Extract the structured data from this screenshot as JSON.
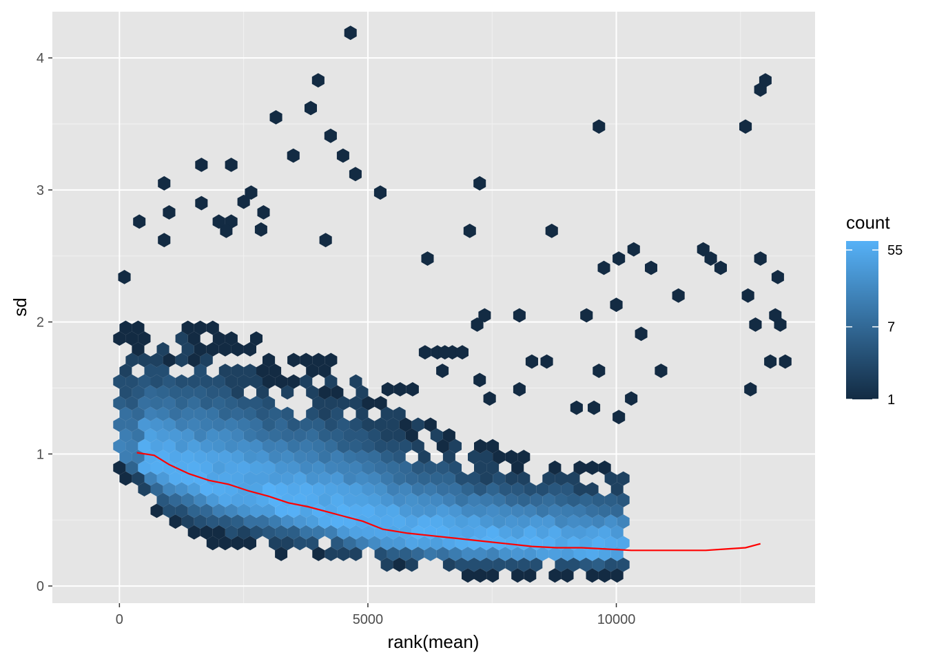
{
  "chart_data": {
    "type": "heatmap",
    "subtype": "hexbin",
    "title": "",
    "xlabel": "rank(mean)",
    "ylabel": "sd",
    "xlim": [
      -1350,
      14000
    ],
    "ylim": [
      -0.13,
      4.35
    ],
    "x_ticks": [
      0,
      5000,
      10000
    ],
    "x_tick_labels": [
      "0",
      "5000",
      "10000"
    ],
    "y_ticks": [
      0,
      1,
      2,
      3,
      4
    ],
    "y_tick_labels": [
      "0",
      "1",
      "2",
      "3",
      "4"
    ],
    "grid": true,
    "panel_background": "#e5e5e5",
    "legend": {
      "title": "count",
      "placement": "right",
      "breaks": [
        55,
        7,
        1
      ],
      "break_labels": [
        "55",
        "7",
        "1"
      ],
      "scale": "log",
      "range": [
        1,
        70
      ],
      "low_color": "#132b43",
      "high_color": "#56b1f7"
    },
    "hex_grid": {
      "x_start": 0,
      "x_step": 250.4,
      "y_start": 0.8,
      "y_step": 0.0625,
      "n_cols": 41,
      "n_rows": 62,
      "offset_odd_rows": true
    },
    "density_profile": {
      "x": [
        0,
        1000,
        2000,
        3000,
        4000,
        5000,
        6000,
        7000,
        8000,
        9000,
        10000,
        11000,
        12000,
        13200
      ],
      "center": [
        1.0,
        0.86,
        0.74,
        0.63,
        0.54,
        0.42,
        0.37,
        0.33,
        0.3,
        0.28,
        0.27,
        0.27,
        0.28,
        0.32
      ],
      "top": [
        2.0,
        2.0,
        1.95,
        1.85,
        1.75,
        1.6,
        1.3,
        1.15,
        1.05,
        1.0,
        0.95,
        0.95,
        1.05,
        1.15
      ],
      "bottom": [
        0.85,
        0.45,
        0.3,
        0.25,
        0.2,
        0.15,
        0.1,
        0.08,
        0.08,
        0.08,
        0.08,
        0.08,
        0.08,
        0.08
      ]
    },
    "sparse_points": [
      [
        100,
        2.34
      ],
      [
        400,
        2.76
      ],
      [
        900,
        3.05
      ],
      [
        1000,
        2.83
      ],
      [
        900,
        2.62
      ],
      [
        1650,
        3.19
      ],
      [
        2250,
        3.19
      ],
      [
        1650,
        2.9
      ],
      [
        2500,
        2.91
      ],
      [
        2650,
        2.98
      ],
      [
        2900,
        2.83
      ],
      [
        2850,
        2.7
      ],
      [
        2000,
        2.76
      ],
      [
        2250,
        2.76
      ],
      [
        2150,
        2.69
      ],
      [
        3150,
        3.55
      ],
      [
        3500,
        3.26
      ],
      [
        3850,
        3.62
      ],
      [
        4000,
        3.83
      ],
      [
        4150,
        2.62
      ],
      [
        4250,
        3.41
      ],
      [
        4500,
        3.26
      ],
      [
        4650,
        4.19
      ],
      [
        4750,
        3.12
      ],
      [
        5250,
        2.98
      ],
      [
        6200,
        2.48
      ],
      [
        7050,
        2.69
      ],
      [
        7250,
        3.05
      ],
      [
        8700,
        2.69
      ],
      [
        9650,
        3.48
      ],
      [
        9750,
        2.41
      ],
      [
        10050,
        2.48
      ],
      [
        10350,
        2.55
      ],
      [
        10700,
        2.41
      ],
      [
        12600,
        3.48
      ],
      [
        12900,
        3.76
      ],
      [
        13000,
        3.83
      ],
      [
        12900,
        2.48
      ],
      [
        13250,
        2.34
      ],
      [
        9400,
        2.05
      ],
      [
        10000,
        2.13
      ],
      [
        10500,
        1.91
      ],
      [
        10900,
        1.63
      ],
      [
        11250,
        2.2
      ],
      [
        11750,
        2.55
      ],
      [
        11900,
        2.48
      ],
      [
        12100,
        2.41
      ],
      [
        12650,
        2.2
      ],
      [
        12800,
        1.98
      ],
      [
        13200,
        2.05
      ],
      [
        13300,
        1.98
      ],
      [
        7350,
        2.05
      ],
      [
        7200,
        1.98
      ],
      [
        8050,
        2.05
      ],
      [
        8300,
        1.7
      ],
      [
        8600,
        1.7
      ],
      [
        9650,
        1.63
      ],
      [
        6150,
        1.77
      ],
      [
        6400,
        1.77
      ],
      [
        6550,
        1.77
      ],
      [
        6700,
        1.77
      ],
      [
        6900,
        1.77
      ],
      [
        7250,
        1.56
      ],
      [
        6500,
        1.63
      ],
      [
        10300,
        1.42
      ],
      [
        13400,
        1.7
      ],
      [
        13100,
        1.7
      ],
      [
        5650,
        1.49
      ],
      [
        5400,
        1.49
      ],
      [
        5900,
        1.49
      ],
      [
        7450,
        1.42
      ],
      [
        8050,
        1.49
      ],
      [
        12700,
        1.49
      ],
      [
        9550,
        1.35
      ],
      [
        10050,
        1.28
      ],
      [
        9200,
        1.35
      ]
    ],
    "smooth_line": {
      "color": "#ff0000",
      "x": [
        350,
        700,
        1000,
        1400,
        1800,
        2200,
        2600,
        3000,
        3400,
        3800,
        4200,
        4500,
        4900,
        5300,
        5800,
        6300,
        6800,
        7300,
        7800,
        8300,
        8800,
        9300,
        9800,
        10300,
        10800,
        11300,
        11800,
        12200,
        12600,
        12900
      ],
      "y": [
        1.01,
        0.99,
        0.92,
        0.85,
        0.8,
        0.77,
        0.72,
        0.68,
        0.63,
        0.6,
        0.56,
        0.53,
        0.49,
        0.43,
        0.4,
        0.38,
        0.36,
        0.34,
        0.32,
        0.3,
        0.29,
        0.29,
        0.28,
        0.27,
        0.27,
        0.27,
        0.27,
        0.28,
        0.29,
        0.32
      ]
    }
  }
}
